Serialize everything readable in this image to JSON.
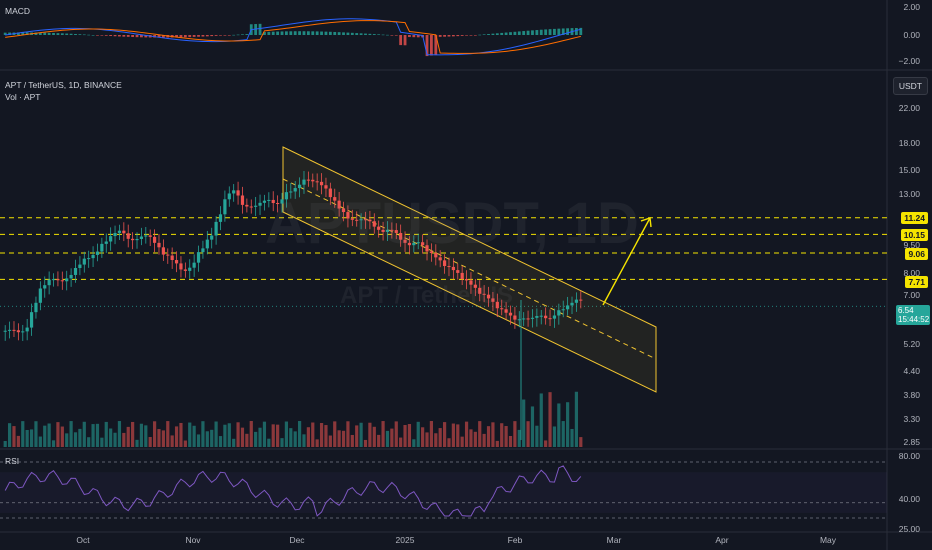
{
  "symbol": {
    "title": "APT / TetherUS, 1D, BINANCE",
    "volume_label": "Vol · APT",
    "watermark_main": "APTUSDT, 1D",
    "watermark_sub": "APT / TetherUS",
    "currency": "USDT"
  },
  "panes": {
    "macd": {
      "title": "MACD",
      "ticks": [
        "2.00",
        "0.00",
        "−2.00"
      ]
    },
    "rsi": {
      "title": "RSI",
      "ticks": [
        "80.00",
        "40.00",
        "25.00"
      ]
    }
  },
  "price_axis": {
    "ticks": [
      "22.00",
      "18.00",
      "15.00",
      "13.00",
      "9.50",
      "8.00",
      "7.00",
      "5.20",
      "4.40",
      "3.80",
      "3.30",
      "2.85"
    ],
    "level_tags": [
      "11.24",
      "10.15",
      "9.06",
      "7.71"
    ],
    "current_price": "6.54",
    "countdown": "15:44:52"
  },
  "time_axis": {
    "labels": [
      "Oct",
      "Nov",
      "Dec",
      "2025",
      "Feb",
      "Mar",
      "Apr",
      "May"
    ]
  },
  "colors": {
    "background": "#131722",
    "up": "#26a69a",
    "down": "#ef5350",
    "level_line": "#f5e400",
    "channel": "#f0c330",
    "macd_line": "#2962ff",
    "signal_line": "#ff6d00",
    "rsi_line": "#7e57c2"
  },
  "chart_data": {
    "type": "candlestick",
    "close_path": [
      5.6,
      5.7,
      5.5,
      5.9,
      7.2,
      7.6,
      7.8,
      7.5,
      8.2,
      8.6,
      8.9,
      9.3,
      10.0,
      10.4,
      10.1,
      9.6,
      10.3,
      9.8,
      9.1,
      8.8,
      8.3,
      8.0,
      8.9,
      9.6,
      10.4,
      12.2,
      13.6,
      12.4,
      11.8,
      12.3,
      12.6,
      12.1,
      12.9,
      13.4,
      14.0,
      14.3,
      13.8,
      13.2,
      12.0,
      11.4,
      10.9,
      11.3,
      10.8,
      10.2,
      10.6,
      10.0,
      9.4,
      9.8,
      9.3,
      8.9,
      8.5,
      8.2,
      7.9,
      7.5,
      7.2,
      6.9,
      6.6,
      6.3,
      6.1,
      6.0,
      6.1,
      6.2,
      6.0,
      6.3,
      6.5,
      6.8
    ],
    "horizontal_levels": [
      11.24,
      10.15,
      9.06,
      7.71
    ],
    "projection": "arrow up from channel breakout toward ~11.24",
    "macd_range": [
      -2.0,
      2.0
    ],
    "rsi_levels": [
      80,
      40,
      25
    ]
  }
}
